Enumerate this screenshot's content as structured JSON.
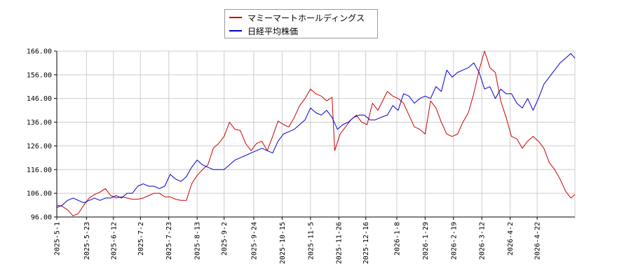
{
  "colors": {
    "series_a": "#cc0000",
    "series_b": "#0000cc",
    "grid": "#cccccc",
    "axis": "#000000"
  },
  "chart_data": {
    "type": "line",
    "xlabel": "",
    "ylabel": "",
    "ylim": [
      96,
      166
    ],
    "yticks": [
      "96.00",
      "106.00",
      "116.00",
      "126.00",
      "136.00",
      "146.00",
      "156.00",
      "166.00"
    ],
    "xticks": [
      "2025-5-1",
      "2025-5-23",
      "2025-6-12",
      "2025-7-2",
      "2025-7-23",
      "2025-8-13",
      "2025-9-2",
      "2025-9-24",
      "2025-10-15",
      "2025-11-5",
      "2025-11-26",
      "2025-12-16",
      "2026-1-8",
      "2026-1-29",
      "2026-2-19",
      "2026-3-12",
      "2026-4-2",
      "2026-4-22"
    ],
    "grid": true,
    "legend_position": "top-center",
    "series": [
      {
        "name": "マミーマートホールディングス",
        "color": "#cc0000",
        "points": [
          [
            "2025-5-1",
            101
          ],
          [
            "2025-5-5",
            100.5
          ],
          [
            "2025-5-9",
            99
          ],
          [
            "2025-5-13",
            96.5
          ],
          [
            "2025-5-17",
            97.5
          ],
          [
            "2025-5-21",
            101
          ],
          [
            "2025-5-25",
            104
          ],
          [
            "2025-5-29",
            105.5
          ],
          [
            "2025-6-2",
            106.5
          ],
          [
            "2025-6-6",
            108
          ],
          [
            "2025-6-10",
            105
          ],
          [
            "2025-6-14",
            104
          ],
          [
            "2025-6-18",
            104.5
          ],
          [
            "2025-6-22",
            104
          ],
          [
            "2025-6-26",
            103.5
          ],
          [
            "2025-6-30",
            103.5
          ],
          [
            "2025-7-4",
            104
          ],
          [
            "2025-7-8",
            105
          ],
          [
            "2025-7-12",
            106
          ],
          [
            "2025-7-16",
            106
          ],
          [
            "2025-7-20",
            104.5
          ],
          [
            "2025-7-24",
            104.5
          ],
          [
            "2025-7-28",
            103.5
          ],
          [
            "2025-8-1",
            103
          ],
          [
            "2025-8-5",
            103
          ],
          [
            "2025-8-9",
            110
          ],
          [
            "2025-8-13",
            113.5
          ],
          [
            "2025-8-17",
            116
          ],
          [
            "2025-8-21",
            118
          ],
          [
            "2025-8-25",
            125
          ],
          [
            "2025-8-29",
            127
          ],
          [
            "2025-9-2",
            130
          ],
          [
            "2025-9-6",
            136
          ],
          [
            "2025-9-10",
            133
          ],
          [
            "2025-9-14",
            132.5
          ],
          [
            "2025-9-18",
            127
          ],
          [
            "2025-9-22",
            124
          ],
          [
            "2025-9-26",
            127
          ],
          [
            "2025-9-30",
            128
          ],
          [
            "2025-10-4",
            124
          ],
          [
            "2025-10-8",
            130
          ],
          [
            "2025-10-12",
            136.5
          ],
          [
            "2025-10-16",
            135
          ],
          [
            "2025-10-20",
            134
          ],
          [
            "2025-10-24",
            138
          ],
          [
            "2025-10-28",
            143
          ],
          [
            "2025-11-1",
            146
          ],
          [
            "2025-11-5",
            150
          ],
          [
            "2025-11-9",
            148
          ],
          [
            "2025-11-13",
            147
          ],
          [
            "2025-11-17",
            145
          ],
          [
            "2025-11-21",
            146.5
          ],
          [
            "2025-11-23",
            124
          ],
          [
            "2025-11-27",
            131
          ],
          [
            "2025-12-1",
            134
          ],
          [
            "2025-12-5",
            137
          ],
          [
            "2025-12-9",
            139
          ],
          [
            "2025-12-13",
            136
          ],
          [
            "2025-12-17",
            135
          ],
          [
            "2025-12-21",
            144
          ],
          [
            "2025-12-25",
            141
          ],
          [
            "2026-1-1",
            149
          ],
          [
            "2026-1-5",
            147
          ],
          [
            "2026-1-9",
            146
          ],
          [
            "2026-1-13",
            144
          ],
          [
            "2026-1-17",
            139
          ],
          [
            "2026-1-21",
            134
          ],
          [
            "2026-1-25",
            133
          ],
          [
            "2026-1-29",
            131
          ],
          [
            "2026-2-2",
            145
          ],
          [
            "2026-2-6",
            142
          ],
          [
            "2026-2-10",
            136
          ],
          [
            "2026-2-14",
            131
          ],
          [
            "2026-2-18",
            130
          ],
          [
            "2026-2-22",
            131
          ],
          [
            "2026-2-26",
            136
          ],
          [
            "2026-3-2",
            140
          ],
          [
            "2026-3-6",
            148
          ],
          [
            "2026-3-10",
            158
          ],
          [
            "2026-3-14",
            166
          ],
          [
            "2026-3-18",
            159
          ],
          [
            "2026-3-22",
            157
          ],
          [
            "2026-3-26",
            145
          ],
          [
            "2026-3-30",
            138
          ],
          [
            "2026-4-3",
            130
          ],
          [
            "2026-4-7",
            129
          ],
          [
            "2026-4-11",
            125
          ],
          [
            "2026-4-15",
            128
          ],
          [
            "2026-4-19",
            130
          ],
          [
            "2026-4-23",
            128
          ],
          [
            "2026-4-27",
            125
          ],
          [
            "2026-5-1",
            119
          ],
          [
            "2026-5-5",
            116
          ],
          [
            "2026-5-9",
            112
          ],
          [
            "2026-5-13",
            107
          ],
          [
            "2026-5-17",
            104
          ],
          [
            "2026-5-20",
            105.5
          ]
        ]
      },
      {
        "name": "日経平均株価",
        "color": "#0000cc",
        "points": [
          [
            "2025-5-1",
            100
          ],
          [
            "2025-5-5",
            101
          ],
          [
            "2025-5-9",
            103
          ],
          [
            "2025-5-13",
            104
          ],
          [
            "2025-5-17",
            103
          ],
          [
            "2025-5-21",
            102
          ],
          [
            "2025-5-25",
            103
          ],
          [
            "2025-5-29",
            104
          ],
          [
            "2025-6-2",
            103
          ],
          [
            "2025-6-6",
            104
          ],
          [
            "2025-6-10",
            104
          ],
          [
            "2025-6-14",
            105
          ],
          [
            "2025-6-18",
            104
          ],
          [
            "2025-6-22",
            106
          ],
          [
            "2025-6-26",
            106
          ],
          [
            "2025-6-30",
            109
          ],
          [
            "2025-7-4",
            110
          ],
          [
            "2025-7-8",
            109
          ],
          [
            "2025-7-12",
            109
          ],
          [
            "2025-7-16",
            108
          ],
          [
            "2025-7-20",
            109
          ],
          [
            "2025-7-24",
            114
          ],
          [
            "2025-7-28",
            112
          ],
          [
            "2025-8-1",
            111
          ],
          [
            "2025-8-5",
            113
          ],
          [
            "2025-8-9",
            117
          ],
          [
            "2025-8-13",
            120
          ],
          [
            "2025-8-17",
            118
          ],
          [
            "2025-8-21",
            117
          ],
          [
            "2025-8-25",
            116
          ],
          [
            "2025-8-29",
            116
          ],
          [
            "2025-9-2",
            116
          ],
          [
            "2025-9-6",
            118
          ],
          [
            "2025-9-10",
            120
          ],
          [
            "2025-9-14",
            121
          ],
          [
            "2025-9-18",
            122
          ],
          [
            "2025-9-22",
            123
          ],
          [
            "2025-9-26",
            124
          ],
          [
            "2025-9-30",
            125
          ],
          [
            "2025-10-4",
            124
          ],
          [
            "2025-10-8",
            123
          ],
          [
            "2025-10-12",
            128
          ],
          [
            "2025-10-16",
            131
          ],
          [
            "2025-10-20",
            132
          ],
          [
            "2025-10-24",
            133
          ],
          [
            "2025-10-28",
            135
          ],
          [
            "2025-11-1",
            137
          ],
          [
            "2025-11-5",
            142
          ],
          [
            "2025-11-9",
            140
          ],
          [
            "2025-11-13",
            139
          ],
          [
            "2025-11-17",
            141
          ],
          [
            "2025-11-21",
            138
          ],
          [
            "2025-11-25",
            133
          ],
          [
            "2025-11-29",
            135
          ],
          [
            "2025-12-3",
            136
          ],
          [
            "2025-12-7",
            138
          ],
          [
            "2025-12-11",
            139
          ],
          [
            "2025-12-15",
            139
          ],
          [
            "2025-12-19",
            137
          ],
          [
            "2025-12-23",
            137
          ],
          [
            "2025-12-27",
            138
          ],
          [
            "2026-1-1",
            139
          ],
          [
            "2026-1-5",
            143
          ],
          [
            "2026-1-9",
            141
          ],
          [
            "2026-1-13",
            148
          ],
          [
            "2026-1-17",
            147
          ],
          [
            "2026-1-21",
            144
          ],
          [
            "2026-1-25",
            146
          ],
          [
            "2026-1-29",
            147
          ],
          [
            "2026-2-2",
            146
          ],
          [
            "2026-2-6",
            151
          ],
          [
            "2026-2-10",
            149
          ],
          [
            "2026-2-14",
            158
          ],
          [
            "2026-2-18",
            155
          ],
          [
            "2026-2-22",
            157
          ],
          [
            "2026-2-26",
            158
          ],
          [
            "2026-3-2",
            159
          ],
          [
            "2026-3-6",
            161
          ],
          [
            "2026-3-10",
            157
          ],
          [
            "2026-3-14",
            150
          ],
          [
            "2026-3-18",
            151
          ],
          [
            "2026-3-22",
            146
          ],
          [
            "2026-3-26",
            150
          ],
          [
            "2026-3-30",
            148
          ],
          [
            "2026-4-3",
            148
          ],
          [
            "2026-4-7",
            144
          ],
          [
            "2026-4-11",
            142
          ],
          [
            "2026-4-15",
            146
          ],
          [
            "2026-4-19",
            141
          ],
          [
            "2026-4-23",
            146
          ],
          [
            "2026-4-27",
            152
          ],
          [
            "2026-5-1",
            155
          ],
          [
            "2026-5-5",
            158
          ],
          [
            "2026-5-9",
            161
          ],
          [
            "2026-5-13",
            163
          ],
          [
            "2026-5-17",
            165
          ],
          [
            "2026-5-20",
            163
          ]
        ]
      }
    ]
  }
}
